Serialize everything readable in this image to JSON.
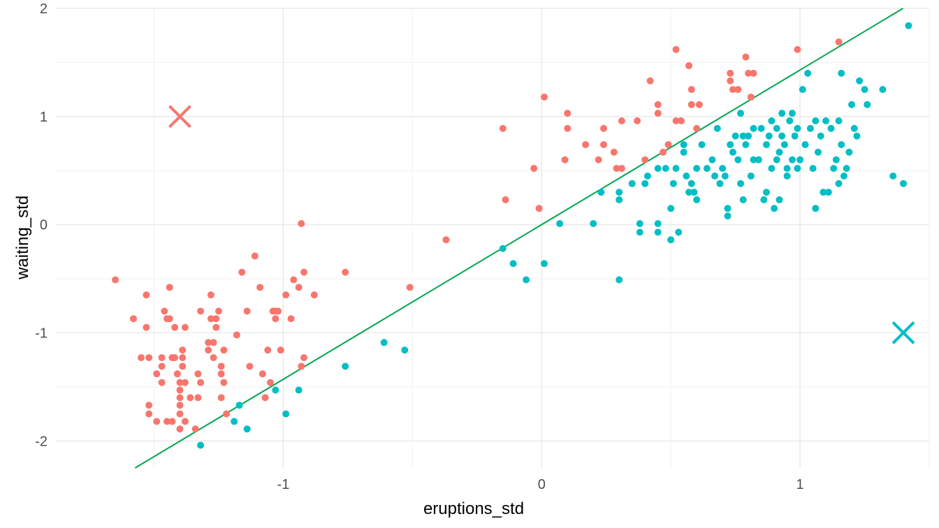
{
  "chart_data": {
    "type": "scatter",
    "title": "",
    "xlabel": "eruptions_std",
    "ylabel": "waiting_std",
    "xlim": [
      -1.88,
      1.5
    ],
    "ylim": [
      -2.25,
      2.0
    ],
    "x_ticks": [
      -1,
      0,
      1
    ],
    "x_tick_labels": [
      "-1",
      "0",
      "1"
    ],
    "y_ticks": [
      -2,
      -1,
      0,
      1,
      2
    ],
    "y_tick_labels": [
      "-2",
      "-1",
      "0",
      "1",
      "2"
    ],
    "grid": true,
    "legend": "none",
    "colors": {
      "cluster_1": "#F8766D",
      "cluster_2": "#00BFC4",
      "boundary": "#00A651"
    },
    "series": [
      {
        "color": "#F8766D",
        "marker": "circle",
        "points": [
          [
            -1.65,
            -0.51
          ],
          [
            -1.58,
            -0.87
          ],
          [
            -1.55,
            -1.23
          ],
          [
            -1.53,
            -0.65
          ],
          [
            -1.53,
            -0.95
          ],
          [
            -1.52,
            -1.23
          ],
          [
            -1.52,
            -1.67
          ],
          [
            -1.52,
            -1.75
          ],
          [
            -1.49,
            -1.38
          ],
          [
            -1.49,
            -1.82
          ],
          [
            -1.47,
            -1.23
          ],
          [
            -1.47,
            -1.31
          ],
          [
            -1.47,
            -1.46
          ],
          [
            -1.46,
            -0.8
          ],
          [
            -1.45,
            -0.87
          ],
          [
            -1.45,
            -1.82
          ],
          [
            -1.44,
            -0.58
          ],
          [
            -1.44,
            -0.87
          ],
          [
            -1.43,
            -1.23
          ],
          [
            -1.43,
            -1.82
          ],
          [
            -1.42,
            -0.95
          ],
          [
            -1.42,
            -1.23
          ],
          [
            -1.41,
            -1.38
          ],
          [
            -1.4,
            -1.46
          ],
          [
            -1.4,
            -1.53
          ],
          [
            -1.4,
            -1.6
          ],
          [
            -1.4,
            -1.67
          ],
          [
            -1.4,
            -1.75
          ],
          [
            -1.4,
            -1.89
          ],
          [
            -1.39,
            -1.16
          ],
          [
            -1.39,
            -1.23
          ],
          [
            -1.39,
            -1.31
          ],
          [
            -1.38,
            -0.95
          ],
          [
            -1.38,
            -1.46
          ],
          [
            -1.38,
            -1.82
          ],
          [
            -1.36,
            -1.6
          ],
          [
            -1.34,
            -1.89
          ],
          [
            -1.33,
            -1.6
          ],
          [
            -1.33,
            -1.38
          ],
          [
            -1.32,
            -1.46
          ],
          [
            -1.32,
            -0.8
          ],
          [
            -1.29,
            -1.09
          ],
          [
            -1.29,
            -1.16
          ],
          [
            -1.28,
            -0.65
          ],
          [
            -1.28,
            -0.87
          ],
          [
            -1.27,
            -1.09
          ],
          [
            -1.27,
            -1.23
          ],
          [
            -1.26,
            -0.87
          ],
          [
            -1.26,
            -0.95
          ],
          [
            -1.25,
            -0.8
          ],
          [
            -1.24,
            -1.38
          ],
          [
            -1.24,
            -1.6
          ],
          [
            -1.24,
            -1.31
          ],
          [
            -1.23,
            -1.46
          ],
          [
            -1.23,
            -1.16
          ],
          [
            -1.22,
            -1.75
          ],
          [
            -1.18,
            -1.02
          ],
          [
            -1.16,
            -0.44
          ],
          [
            -1.14,
            -0.8
          ],
          [
            -1.13,
            -1.31
          ],
          [
            -1.11,
            -0.29
          ],
          [
            -1.09,
            -0.58
          ],
          [
            -1.08,
            -1.38
          ],
          [
            -1.07,
            -1.6
          ],
          [
            -1.06,
            -1.16
          ],
          [
            -1.05,
            -1.46
          ],
          [
            -1.04,
            -0.8
          ],
          [
            -1.03,
            -0.8
          ],
          [
            -1.03,
            -0.87
          ],
          [
            -1.02,
            -0.8
          ],
          [
            -1.01,
            -1.16
          ],
          [
            -0.99,
            -0.65
          ],
          [
            -0.97,
            -0.87
          ],
          [
            -0.96,
            -0.51
          ],
          [
            -0.94,
            -0.58
          ],
          [
            -0.93,
            0.01
          ],
          [
            -0.93,
            -1.31
          ],
          [
            -0.92,
            -0.44
          ],
          [
            -0.92,
            -1.23
          ],
          [
            -0.88,
            -0.65
          ],
          [
            -0.76,
            -0.44
          ],
          [
            -0.51,
            -0.58
          ],
          [
            -0.37,
            -0.14
          ],
          [
            -0.15,
            0.89
          ],
          [
            -0.14,
            0.23
          ],
          [
            -0.03,
            0.52
          ],
          [
            0.01,
            1.18
          ],
          [
            -0.01,
            0.15
          ],
          [
            0.09,
            0.6
          ],
          [
            0.1,
            0.89
          ],
          [
            0.1,
            1.03
          ],
          [
            0.17,
            0.74
          ],
          [
            0.22,
            0.6
          ],
          [
            0.24,
            0.89
          ],
          [
            0.24,
            0.74
          ],
          [
            0.28,
            0.67
          ],
          [
            0.29,
            0.52
          ],
          [
            0.31,
            0.96
          ],
          [
            0.31,
            0.52
          ],
          [
            0.37,
            0.96
          ],
          [
            0.4,
            0.6
          ],
          [
            0.42,
            1.33
          ],
          [
            0.45,
            1.11
          ],
          [
            0.45,
            1.03
          ],
          [
            0.47,
            0.67
          ],
          [
            0.49,
            0.74
          ],
          [
            0.52,
            0.96
          ],
          [
            0.52,
            1.62
          ],
          [
            0.54,
            0.96
          ],
          [
            0.57,
            1.47
          ],
          [
            0.58,
            1.25
          ],
          [
            0.58,
            1.11
          ],
          [
            0.6,
            0.89
          ],
          [
            0.61,
            1.11
          ],
          [
            0.73,
            1.4
          ],
          [
            0.73,
            1.33
          ],
          [
            0.74,
            1.25
          ],
          [
            0.76,
            1.25
          ],
          [
            0.79,
            1.55
          ],
          [
            0.8,
            1.4
          ],
          [
            0.82,
            1.4
          ],
          [
            0.81,
            1.18
          ],
          [
            0.99,
            1.62
          ],
          [
            1.15,
            1.69
          ]
        ]
      },
      {
        "color": "#00BFC4",
        "marker": "circle",
        "points": [
          [
            -1.32,
            -2.04
          ],
          [
            -1.17,
            -1.67
          ],
          [
            -1.19,
            -1.82
          ],
          [
            -1.14,
            -1.89
          ],
          [
            -1.03,
            -1.53
          ],
          [
            -0.99,
            -1.75
          ],
          [
            -0.94,
            -1.53
          ],
          [
            -0.76,
            -1.31
          ],
          [
            -0.61,
            -1.09
          ],
          [
            -0.53,
            -1.16
          ],
          [
            -0.15,
            -0.22
          ],
          [
            -0.11,
            -0.36
          ],
          [
            -0.06,
            -0.51
          ],
          [
            0.01,
            -0.36
          ],
          [
            0.07,
            0.01
          ],
          [
            0.2,
            0.01
          ],
          [
            0.23,
            0.3
          ],
          [
            0.3,
            0.23
          ],
          [
            0.3,
            0.3
          ],
          [
            0.3,
            -0.51
          ],
          [
            0.35,
            0.38
          ],
          [
            0.38,
            0.01
          ],
          [
            0.38,
            -0.07
          ],
          [
            0.4,
            0.38
          ],
          [
            0.41,
            0.45
          ],
          [
            0.45,
            0.52
          ],
          [
            0.45,
            0.01
          ],
          [
            0.45,
            -0.07
          ],
          [
            0.48,
            0.52
          ],
          [
            0.5,
            -0.14
          ],
          [
            0.5,
            0.15
          ],
          [
            0.51,
            0.38
          ],
          [
            0.52,
            0.52
          ],
          [
            0.53,
            -0.07
          ],
          [
            0.55,
            0.74
          ],
          [
            0.55,
            0.67
          ],
          [
            0.56,
            0.45
          ],
          [
            0.57,
            0.3
          ],
          [
            0.58,
            0.38
          ],
          [
            0.59,
            0.3
          ],
          [
            0.6,
            0.23
          ],
          [
            0.6,
            0.52
          ],
          [
            0.62,
            0.74
          ],
          [
            0.64,
            0.52
          ],
          [
            0.66,
            0.6
          ],
          [
            0.67,
            0.45
          ],
          [
            0.68,
            0.89
          ],
          [
            0.69,
            0.38
          ],
          [
            0.7,
            0.52
          ],
          [
            0.71,
            0.45
          ],
          [
            0.72,
            0.15
          ],
          [
            0.72,
            0.08
          ],
          [
            0.73,
            0.74
          ],
          [
            0.74,
            0.67
          ],
          [
            0.75,
            0.82
          ],
          [
            0.76,
            0.6
          ],
          [
            0.77,
            0.38
          ],
          [
            0.77,
            1.03
          ],
          [
            0.78,
            0.23
          ],
          [
            0.78,
            0.82
          ],
          [
            0.79,
            0.74
          ],
          [
            0.8,
            0.82
          ],
          [
            0.81,
            0.45
          ],
          [
            0.82,
            0.6
          ],
          [
            0.82,
            0.89
          ],
          [
            0.84,
            0.6
          ],
          [
            0.85,
            0.89
          ],
          [
            0.86,
            0.23
          ],
          [
            0.87,
            0.3
          ],
          [
            0.87,
            0.74
          ],
          [
            0.88,
            0.82
          ],
          [
            0.89,
            0.52
          ],
          [
            0.89,
            0.96
          ],
          [
            0.9,
            0.15
          ],
          [
            0.91,
            0.6
          ],
          [
            0.91,
            0.89
          ],
          [
            0.92,
            0.67
          ],
          [
            0.92,
            0.23
          ],
          [
            0.93,
            0.82
          ],
          [
            0.93,
            1.03
          ],
          [
            0.94,
            0.74
          ],
          [
            0.95,
            0.52
          ],
          [
            0.95,
            0.45
          ],
          [
            0.96,
            0.96
          ],
          [
            0.97,
            0.6
          ],
          [
            0.97,
            1.03
          ],
          [
            0.98,
            0.82
          ],
          [
            0.99,
            0.52
          ],
          [
            0.99,
            0.89
          ],
          [
            1.0,
            0.6
          ],
          [
            1.01,
            1.25
          ],
          [
            1.02,
            0.74
          ],
          [
            1.03,
            1.4
          ],
          [
            1.04,
            0.89
          ],
          [
            1.05,
            0.52
          ],
          [
            1.06,
            0.96
          ],
          [
            1.06,
            0.15
          ],
          [
            1.07,
            0.67
          ],
          [
            1.08,
            0.82
          ],
          [
            1.09,
            0.3
          ],
          [
            1.1,
            0.96
          ],
          [
            1.11,
            0.3
          ],
          [
            1.12,
            0.89
          ],
          [
            1.13,
            0.52
          ],
          [
            1.14,
            0.6
          ],
          [
            1.15,
            0.38
          ],
          [
            1.15,
            0.96
          ],
          [
            1.16,
            0.74
          ],
          [
            1.16,
            1.4
          ],
          [
            1.17,
            0.45
          ],
          [
            1.18,
            0.52
          ],
          [
            1.19,
            0.67
          ],
          [
            1.2,
            1.11
          ],
          [
            1.21,
            0.89
          ],
          [
            1.22,
            0.82
          ],
          [
            1.23,
            1.33
          ],
          [
            1.25,
            1.25
          ],
          [
            1.26,
            1.11
          ],
          [
            1.32,
            1.25
          ],
          [
            1.36,
            0.45
          ],
          [
            1.4,
            0.38
          ],
          [
            1.42,
            1.84
          ]
        ]
      },
      {
        "color": "#F8766D",
        "marker": "cross",
        "points": [
          [
            -1.4,
            1.0
          ]
        ]
      },
      {
        "color": "#00BFC4",
        "marker": "cross",
        "points": [
          [
            1.4,
            -1.0
          ]
        ]
      }
    ],
    "lines": [
      {
        "color": "#00A651",
        "slope": 1.43,
        "intercept": 0.0
      }
    ]
  }
}
